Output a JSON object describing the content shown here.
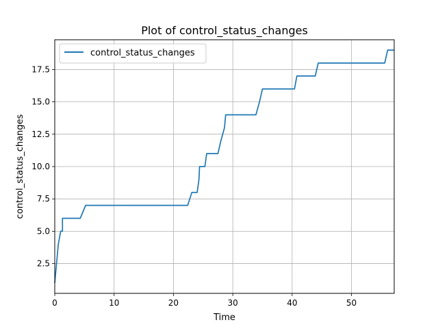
{
  "chart_data": {
    "type": "line",
    "title": "Plot of control_status_changes",
    "xlabel": "Time",
    "ylabel": "control_status_changes",
    "xlim": [
      0,
      57.2
    ],
    "ylim": [
      0.2,
      19.8
    ],
    "x_ticks": [
      0,
      10,
      20,
      30,
      40,
      50
    ],
    "y_ticks": [
      2.5,
      5.0,
      7.5,
      10.0,
      12.5,
      15.0,
      17.5
    ],
    "x_tick_labels": [
      "0",
      "10",
      "20",
      "30",
      "40",
      "50"
    ],
    "y_tick_labels": [
      "2.5",
      "5.0",
      "7.5",
      "10.0",
      "12.5",
      "15.0",
      "17.5"
    ],
    "grid": true,
    "legend_position": "upper left",
    "series": [
      {
        "name": "control_status_changes",
        "color": "#1f77b4",
        "x": [
          0,
          0.3,
          0.6,
          1.0,
          1.3,
          1.3,
          4.3,
          5.2,
          22.4,
          23.1,
          24.0,
          24.3,
          24.4,
          25.3,
          25.6,
          27.5,
          28.0,
          28.6,
          28.8,
          33.9,
          34.5,
          35.0,
          40.4,
          40.8,
          43.9,
          44.4,
          55.6,
          56.1,
          57.2
        ],
        "y": [
          1.0,
          2.5,
          4.0,
          5.0,
          5.0,
          6.0,
          6.0,
          7.0,
          7.0,
          8.0,
          8.0,
          9.0,
          10.0,
          10.0,
          11.0,
          11.0,
          12.0,
          13.0,
          14.0,
          14.0,
          15.0,
          16.0,
          16.0,
          17.0,
          17.0,
          18.0,
          18.0,
          19.0,
          19.0
        ]
      }
    ]
  }
}
